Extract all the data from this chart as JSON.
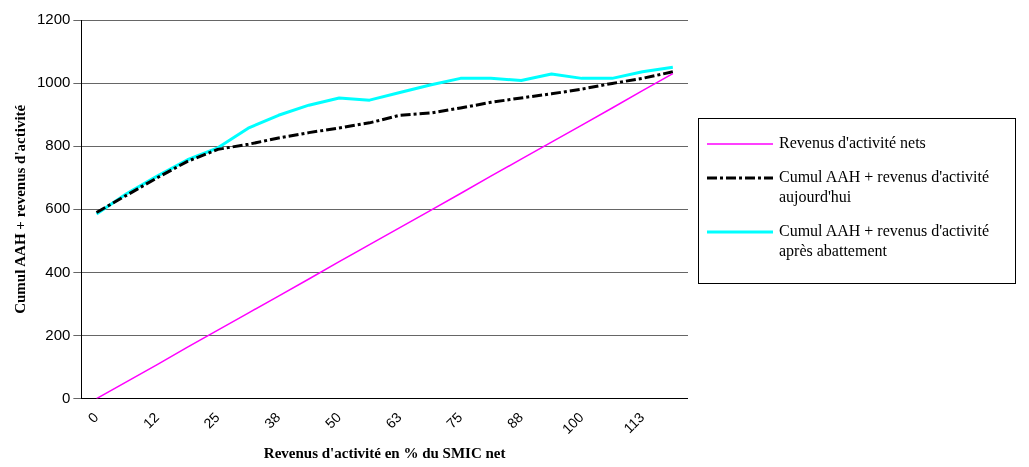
{
  "chart_data": {
    "type": "line",
    "xlabel": "Revenus d'activité en % du SMIC net",
    "ylabel": "Cumul AAH + revenus d'activité",
    "categories": [
      "0",
      null,
      "12",
      null,
      "25",
      null,
      "38",
      null,
      "50",
      null,
      "63",
      null,
      "75",
      null,
      "88",
      null,
      "100",
      null,
      "113",
      null
    ],
    "ylim": [
      0,
      1200
    ],
    "yticks": [
      0,
      200,
      400,
      600,
      800,
      1000,
      1200
    ],
    "grid": "y",
    "legend": "right",
    "series": [
      {
        "name": "Revenus d'activité nets",
        "color": "#ff00ff",
        "line_style": "solid",
        "values": [
          0,
          54,
          108,
          163,
          217,
          271,
          325,
          379,
          434,
          488,
          542,
          596,
          650,
          705,
          759,
          813,
          867,
          921,
          976,
          1030
        ]
      },
      {
        "name": "Cumul AAH + revenus d'activité aujourd'hui",
        "color": "#000000",
        "line_style": "dashed",
        "values": [
          590,
          645,
          700,
          752,
          790,
          806,
          826,
          843,
          858,
          874,
          898,
          905,
          921,
          939,
          953,
          966,
          981,
          999,
          1015,
          1036
        ]
      },
      {
        "name": "Cumul AAH + revenus d'activité après abattement",
        "color": "#00ffff",
        "line_style": "solid",
        "values": [
          585,
          650,
          705,
          757,
          795,
          857,
          898,
          930,
          953,
          946,
          970,
          994,
          1015,
          1015,
          1008,
          1029,
          1015,
          1015,
          1036,
          1050
        ]
      }
    ]
  }
}
